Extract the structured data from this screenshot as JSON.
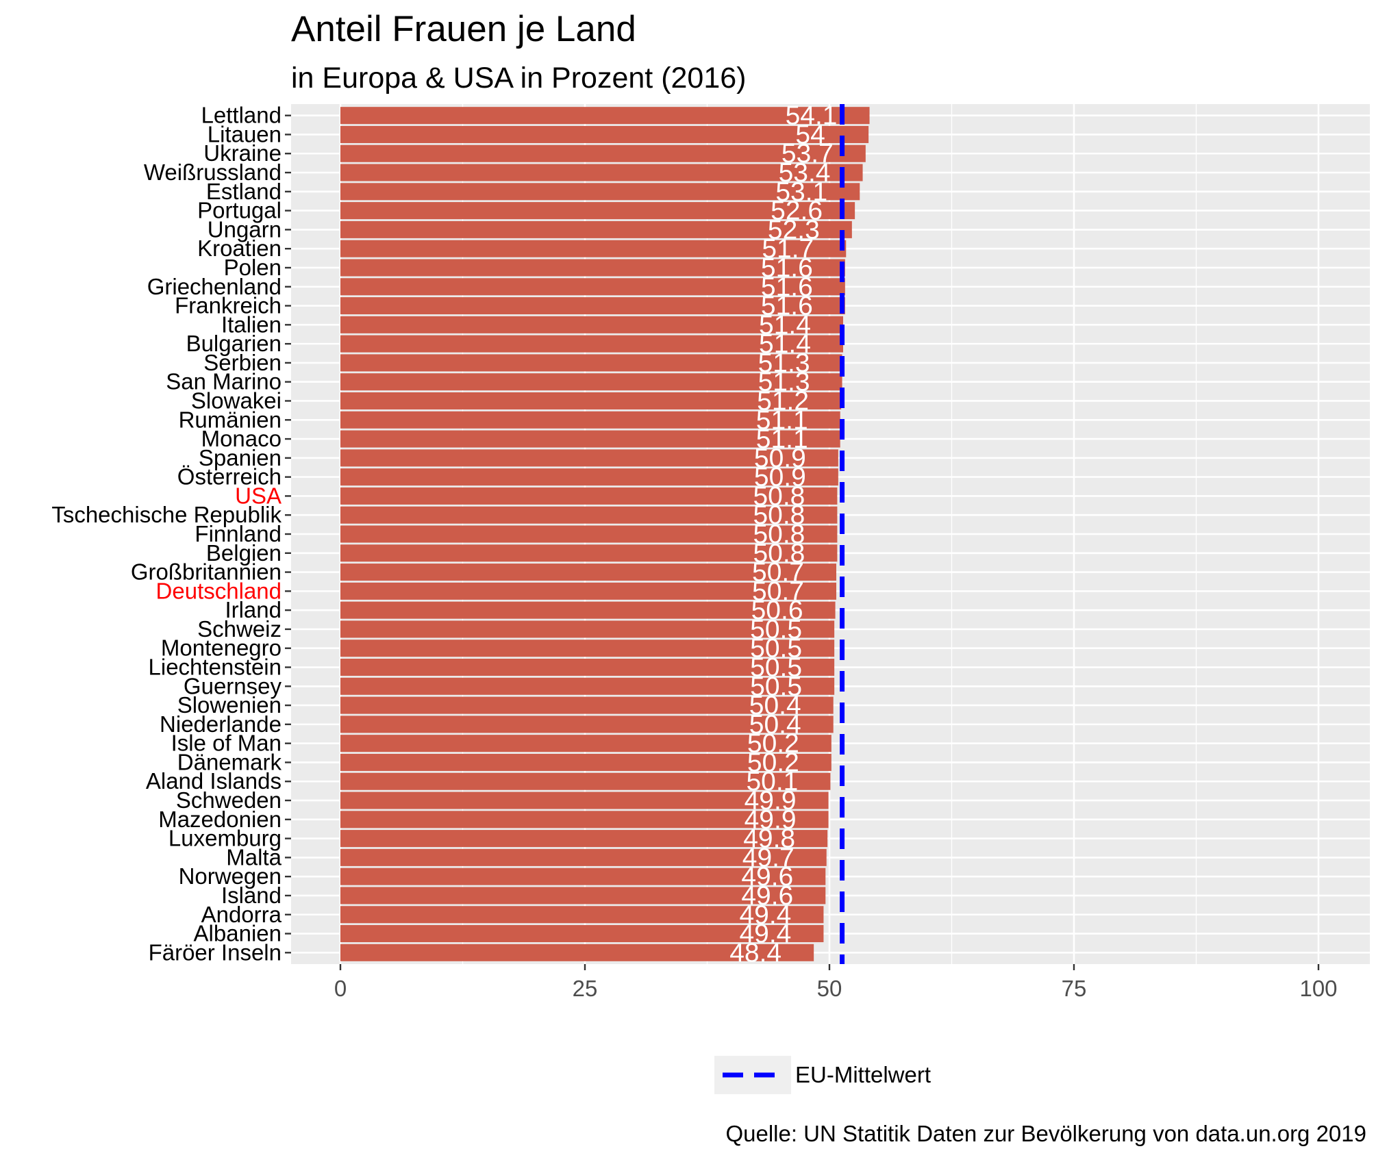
{
  "title": "Anteil Frauen je Land",
  "subtitle": "in Europa & USA in Prozent (2016)",
  "caption": "Quelle: UN Statitik Daten zur Bevölkerung von data.un.org 2019",
  "legend": {
    "label": "EU-Mittelwert"
  },
  "colors": {
    "bar": "#cd5c4a",
    "panel": "#ebebeb",
    "grid": "#ffffff",
    "mean_line": "#0000ff",
    "highlight_label": "#ff0000",
    "axis_text": "#4d4d4d",
    "country_label": "#000000"
  },
  "chart_data": {
    "type": "bar",
    "orientation": "horizontal",
    "categories": [
      "Lettland",
      "Litauen",
      "Ukraine",
      "Weißrussland",
      "Estland",
      "Portugal",
      "Ungarn",
      "Kroatien",
      "Polen",
      "Griechenland",
      "Frankreich",
      "Italien",
      "Bulgarien",
      "Serbien",
      "San Marino",
      "Slowakei",
      "Rumänien",
      "Monaco",
      "Spanien",
      "Österreich",
      "USA",
      "Tschechische Republik",
      "Finnland",
      "Belgien",
      "Großbritannien",
      "Deutschland",
      "Irland",
      "Schweiz",
      "Montenegro",
      "Liechtenstein",
      "Guernsey",
      "Slowenien",
      "Niederlande",
      "Isle of Man",
      "Dänemark",
      "Aland Islands",
      "Schweden",
      "Mazedonien",
      "Luxemburg",
      "Malta",
      "Norwegen",
      "Island",
      "Andorra",
      "Albanien",
      "Färöer Inseln"
    ],
    "values": [
      54.1,
      54,
      53.7,
      53.4,
      53.1,
      52.6,
      52.3,
      51.7,
      51.6,
      51.6,
      51.6,
      51.4,
      51.4,
      51.3,
      51.3,
      51.2,
      51.1,
      51.1,
      50.9,
      50.9,
      50.8,
      50.8,
      50.8,
      50.8,
      50.7,
      50.7,
      50.6,
      50.5,
      50.5,
      50.5,
      50.5,
      50.4,
      50.4,
      50.2,
      50.2,
      50.1,
      49.9,
      49.9,
      49.8,
      49.7,
      49.6,
      49.6,
      49.4,
      49.4,
      48.4
    ],
    "data_labels": [
      "54.1",
      "54",
      "53.7",
      "53.4",
      "53.1",
      "52.6",
      "52.3",
      "51.7",
      "51.6",
      "51.6",
      "51.6",
      "51.4",
      "51.4",
      "51.3",
      "51.3",
      "51.2",
      "51.1",
      "51.1",
      "50.9",
      "50.9",
      "50.8",
      "50.8",
      "50.8",
      "50.8",
      "50.7",
      "50.7",
      "50.6",
      "50.5",
      "50.5",
      "50.5",
      "50.5",
      "50.4",
      "50.4",
      "50.2",
      "50.2",
      "50.1",
      "49.9",
      "49.9",
      "49.8",
      "49.7",
      "49.6",
      "49.6",
      "49.4",
      "49.4",
      "48.4"
    ],
    "highlighted": [
      "USA",
      "Deutschland"
    ],
    "reference_line": {
      "name": "EU-Mittelwert",
      "value": 51.3,
      "style": "dashed"
    },
    "xlim": [
      0,
      100
    ],
    "xticks": [
      0,
      25,
      50,
      75,
      100
    ],
    "xlabel": "",
    "ylabel": "",
    "grid": true,
    "legend_position": "bottom"
  }
}
